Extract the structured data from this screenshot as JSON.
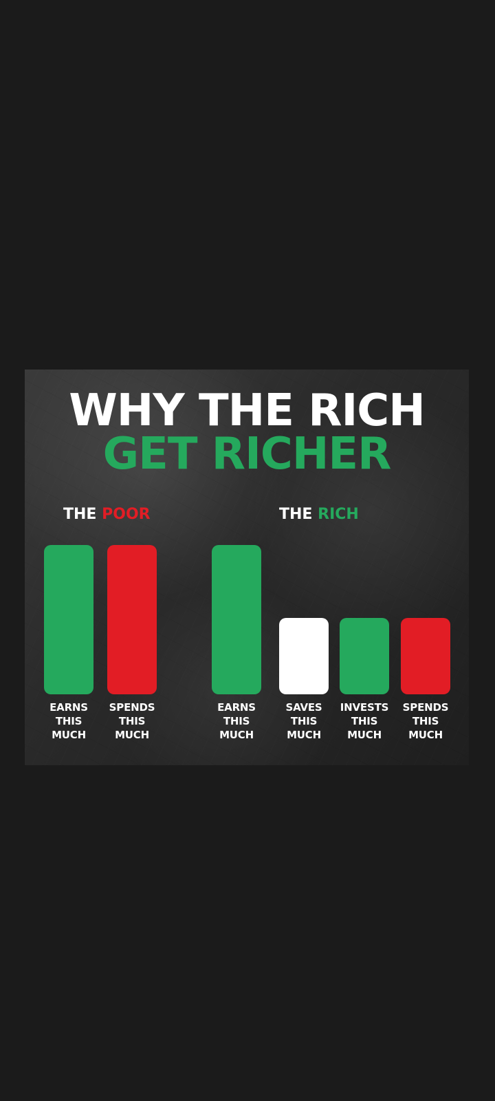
{
  "title": {
    "line1": "WHY THE RICH",
    "line2": "GET RICHER"
  },
  "sections": {
    "poor": {
      "prefix": "THE",
      "highlight": "POOR"
    },
    "rich": {
      "prefix": "THE",
      "highlight": "RICH"
    }
  },
  "colors": {
    "background": "#1b1b1b",
    "green": "#25a95d",
    "red": "#e21d25",
    "white": "#ffffff"
  },
  "chart_data": {
    "type": "bar",
    "title": "WHY THE RICH GET RICHER",
    "groups": [
      {
        "name": "THE POOR",
        "categories": [
          "EARNS THIS MUCH",
          "SPENDS THIS MUCH"
        ],
        "values": [
          1,
          1
        ],
        "colors": [
          "#25a95d",
          "#e21d25"
        ]
      },
      {
        "name": "THE RICH",
        "categories": [
          "EARNS THIS MUCH",
          "SAVES THIS MUCH",
          "INVESTS THIS MUCH",
          "SPENDS THIS MUCH"
        ],
        "values": [
          1,
          0.51,
          0.51,
          0.51
        ],
        "colors": [
          "#25a95d",
          "#ffffff",
          "#25a95d",
          "#e21d25"
        ]
      }
    ],
    "xlabel": "",
    "ylabel": "",
    "grid": false
  }
}
